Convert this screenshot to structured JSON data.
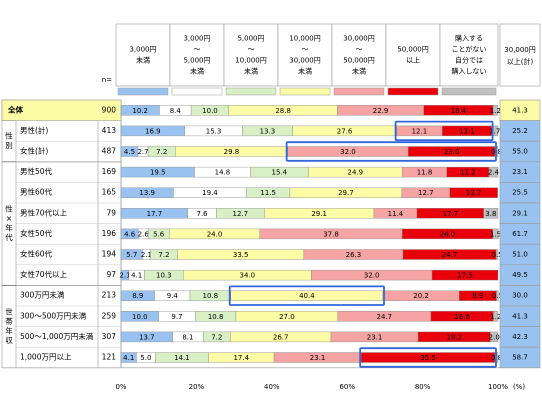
{
  "chart_data": {
    "type": "bar",
    "orientation": "horizontal",
    "stacked": "100%",
    "n_header": "n=",
    "headers": [
      {
        "lines": [
          "3,000円",
          "未満"
        ]
      },
      {
        "lines": [
          "3,000円",
          "～",
          "5,000円",
          "未満"
        ]
      },
      {
        "lines": [
          "5,000円",
          "～",
          "10,000円",
          "未満"
        ]
      },
      {
        "lines": [
          "10,000円",
          "～",
          "30,000円",
          "未満"
        ]
      },
      {
        "lines": [
          "30,000円",
          "～",
          "50,000円",
          "未満"
        ]
      },
      {
        "lines": [
          "50,000円",
          "以上"
        ]
      },
      {
        "lines": [
          "購入する",
          "ことがない",
          "自分では",
          "購入しない"
        ]
      }
    ],
    "right_header": [
      "30,000円",
      "以上(計)"
    ],
    "colors": [
      "#99c2f0",
      "#ffffff",
      "#d9f0c6",
      "#fdfca6",
      "#f5a3a3",
      "#e8000b",
      "#c0c0c0"
    ],
    "group_labels": [
      {
        "text": "性別",
        "vertical": true
      },
      {
        "text": "性×年代",
        "vertical": true
      },
      {
        "text": "世帯年収",
        "vertical": true
      }
    ],
    "rows": [
      {
        "label": "全体",
        "n": "900",
        "values": [
          10.2,
          8.4,
          10.0,
          28.8,
          22.9,
          18.4,
          1.2
        ],
        "labels": [
          "10.2",
          "8.4",
          "10.0",
          "28.8",
          "22.9",
          "18.4",
          "1.2"
        ],
        "total": "41.3",
        "highlight": true
      },
      {
        "label": "男性(計)",
        "n": "413",
        "values": [
          16.9,
          15.3,
          13.3,
          27.6,
          12.1,
          13.1,
          1.7
        ],
        "labels": [
          "16.9",
          "15.3",
          "13.3",
          "27.6",
          "12.1",
          "13.1",
          "1.7"
        ],
        "total": "25.2"
      },
      {
        "label": "女性(計)",
        "n": "487",
        "values": [
          4.5,
          2.7,
          7.2,
          29.8,
          32.0,
          23.0,
          0.8
        ],
        "labels": [
          "4.5",
          "2.7",
          "7.2",
          "29.8",
          "32.0",
          "23.0",
          "0.8"
        ],
        "total": "55.0"
      },
      {
        "label": "男性50代",
        "n": "169",
        "values": [
          19.5,
          14.8,
          15.4,
          24.9,
          11.8,
          11.2,
          2.4
        ],
        "labels": [
          "19.5",
          "14.8",
          "15.4",
          "24.9",
          "11.8",
          "11.2",
          "2.4"
        ],
        "total": "23.1"
      },
      {
        "label": "男性60代",
        "n": "165",
        "values": [
          13.9,
          19.4,
          11.5,
          29.7,
          12.7,
          12.7,
          0.0
        ],
        "labels": [
          "13.9",
          "19.4",
          "11.5",
          "29.7",
          "12.7",
          "12.7",
          ""
        ],
        "total": "25.5"
      },
      {
        "label": "男性70代以上",
        "n": "79",
        "values": [
          17.7,
          7.6,
          12.7,
          29.1,
          11.4,
          17.7,
          3.8
        ],
        "labels": [
          "17.7",
          "7.6",
          "12.7",
          "29.1",
          "11.4",
          "17.7",
          "3.8"
        ],
        "total": "29.1"
      },
      {
        "label": "女性50代",
        "n": "196",
        "values": [
          4.6,
          2.6,
          5.6,
          24.0,
          37.8,
          24.0,
          1.5
        ],
        "labels": [
          "4.6",
          "2.6",
          "5.6",
          "24.0",
          "37.8",
          "24.0",
          "1.5"
        ],
        "total": "61.7"
      },
      {
        "label": "女性60代",
        "n": "194",
        "values": [
          5.7,
          2.1,
          7.2,
          33.5,
          26.3,
          24.7,
          0.5
        ],
        "labels": [
          "5.7",
          "2.1",
          "7.2",
          "33.5",
          "26.3",
          "24.7",
          "0.5"
        ],
        "total": "51.0"
      },
      {
        "label": "女性70代以上",
        "n": "97",
        "values": [
          2.1,
          4.1,
          10.3,
          34.0,
          32.0,
          17.5,
          0.0
        ],
        "labels": [
          "2.1",
          "4.1",
          "10.3",
          "34.0",
          "32.0",
          "17.5",
          ""
        ],
        "total": "49.5"
      },
      {
        "label": "300万円未満",
        "n": "213",
        "values": [
          8.9,
          9.4,
          10.8,
          40.4,
          20.2,
          9.9,
          0.5
        ],
        "labels": [
          "8.9",
          "9.4",
          "10.8",
          "40.4",
          "20.2",
          "9.9",
          "0.5"
        ],
        "total": "30.0"
      },
      {
        "label": "300～500万円未満",
        "n": "259",
        "values": [
          10.0,
          9.7,
          10.8,
          27.0,
          24.7,
          16.6,
          1.2
        ],
        "labels": [
          "10.0",
          "9.7",
          "10.8",
          "27.0",
          "24.7",
          "16.6",
          "1.2"
        ],
        "total": "41.3"
      },
      {
        "label": "500～1,000万円未満",
        "n": "307",
        "values": [
          13.7,
          8.1,
          7.2,
          26.7,
          23.1,
          19.2,
          2.0
        ],
        "labels": [
          "13.7",
          "8.1",
          "7.2",
          "26.7",
          "23.1",
          "19.2",
          "2.0"
        ],
        "total": "42.3"
      },
      {
        "label": "1,000万円以上",
        "n": "121",
        "values": [
          4.1,
          5.0,
          14.1,
          17.4,
          23.1,
          35.5,
          0.8
        ],
        "labels": [
          "4.1",
          "5.0",
          "14.1",
          "17.4",
          "23.1",
          "35.5",
          "0.8"
        ],
        "total": "58.7"
      }
    ],
    "highlights": [
      {
        "row": 1,
        "from": 4,
        "to": 5
      },
      {
        "row": 2,
        "from": 4,
        "to": 5
      },
      {
        "row": 9,
        "from": 3,
        "to": 3
      },
      {
        "row": 12,
        "from": 5,
        "to": 5
      }
    ],
    "xticks": [
      "0%",
      "20%",
      "40%",
      "60%",
      "80%",
      "100%"
    ],
    "unit": "(%)",
    "xlim": [
      0,
      100
    ]
  }
}
